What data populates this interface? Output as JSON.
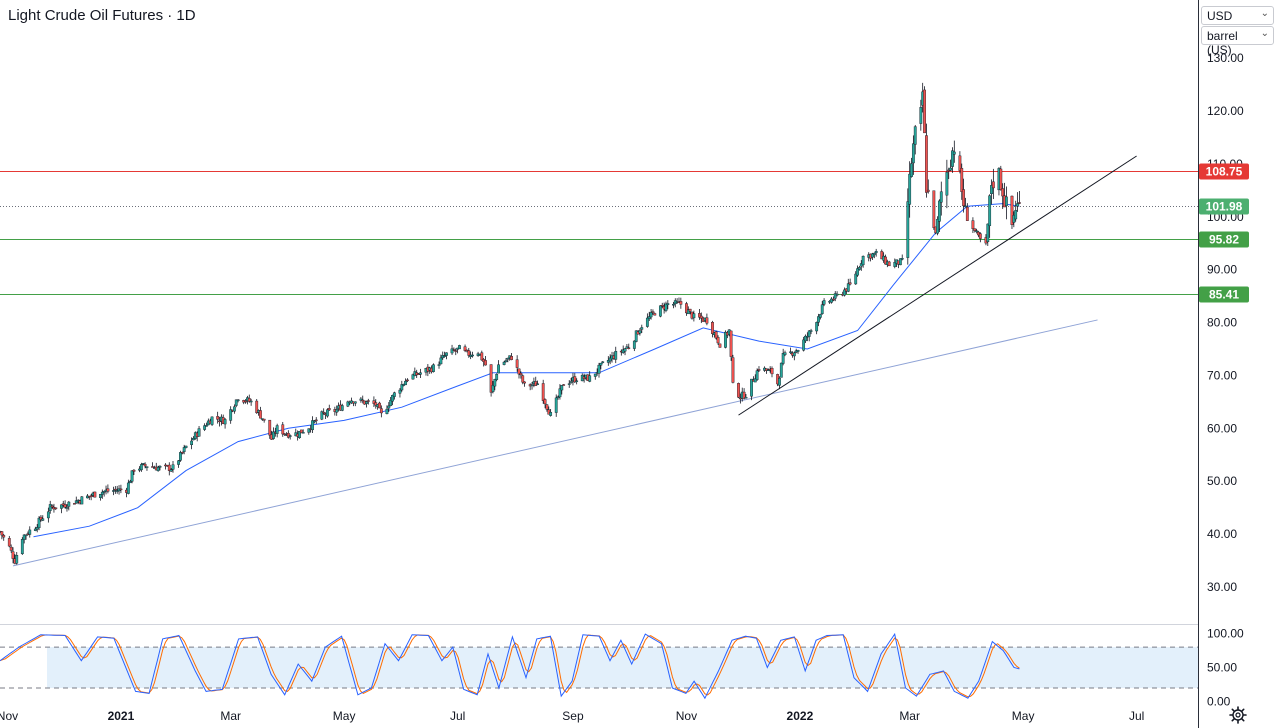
{
  "header": {
    "title": "Light Crude Oil Futures · 1D",
    "currency": "USD",
    "unit": "barrel (US)"
  },
  "icons": {
    "settings": "gear-icon",
    "dropdown": "chevron-down-icon"
  },
  "colors": {
    "background": "#ffffff",
    "candle_up": "#26a69a",
    "candle_down": "#ef5350",
    "moving_average": "#2962ff",
    "resistance_line": "#e53935",
    "support_line": "#43a047",
    "last_price_badge": "#4caf70",
    "long_trendline": "#8fa3d6",
    "short_trendline": "#131722",
    "stoch_k": "#2962ff",
    "stoch_d": "#ff6d00",
    "stoch_band": "#e3f0fb"
  },
  "chart_data": [
    {
      "type": "candlestick",
      "title": "Light Crude Oil Futures · 1D",
      "y_axis": {
        "ticks": [
          "130.00",
          "120.00",
          "110.00",
          "100.00",
          "90.00",
          "80.00",
          "70.00",
          "60.00",
          "50.00",
          "40.00",
          "30.00"
        ],
        "ylim": [
          23,
          141
        ]
      },
      "x_axis": {
        "labels": [
          "Nov",
          "2021",
          "Mar",
          "May",
          "Jul",
          "Sep",
          "Nov",
          "2022",
          "Mar",
          "May",
          "Jul"
        ],
        "label_dates": [
          "2020-11-01",
          "2021-01-01",
          "2021-03-01",
          "2021-05-01",
          "2021-07-01",
          "2021-09-01",
          "2021-11-01",
          "2022-01-01",
          "2022-03-01",
          "2022-05-01",
          "2022-07-01"
        ],
        "range": [
          "2020-10-28",
          "2022-08-03"
        ]
      },
      "close_series": {
        "name": "",
        "points": [
          [
            "2020-10-28",
            40.5
          ],
          [
            "2020-11-02",
            37.5
          ],
          [
            "2020-11-05",
            35.0
          ],
          [
            "2020-11-09",
            39.5
          ],
          [
            "2020-11-16",
            41.5
          ],
          [
            "2020-11-24",
            45.0
          ],
          [
            "2020-12-01",
            45.5
          ],
          [
            "2020-12-10",
            46.5
          ],
          [
            "2020-12-21",
            48.0
          ],
          [
            "2021-01-04",
            48.5
          ],
          [
            "2021-01-08",
            52.3
          ],
          [
            "2021-01-15",
            53.0
          ],
          [
            "2021-01-22",
            52.5
          ],
          [
            "2021-01-29",
            52.5
          ],
          [
            "2021-02-05",
            56.5
          ],
          [
            "2021-02-12",
            59.5
          ],
          [
            "2021-02-19",
            62.0
          ],
          [
            "2021-02-26",
            61.5
          ],
          [
            "2021-03-05",
            66.0
          ],
          [
            "2021-03-08",
            65.5
          ],
          [
            "2021-03-12",
            65.0
          ],
          [
            "2021-03-18",
            62.0
          ],
          [
            "2021-03-23",
            58.0
          ],
          [
            "2021-03-26",
            60.0
          ],
          [
            "2021-03-31",
            59.0
          ],
          [
            "2021-04-06",
            59.0
          ],
          [
            "2021-04-13",
            60.5
          ],
          [
            "2021-04-19",
            62.5
          ],
          [
            "2021-04-27",
            63.5
          ],
          [
            "2021-05-04",
            65.5
          ],
          [
            "2021-05-11",
            65.0
          ],
          [
            "2021-05-18",
            64.5
          ],
          [
            "2021-05-21",
            62.5
          ],
          [
            "2021-05-28",
            66.5
          ],
          [
            "2021-06-04",
            69.5
          ],
          [
            "2021-06-11",
            70.5
          ],
          [
            "2021-06-18",
            71.5
          ],
          [
            "2021-06-25",
            74.0
          ],
          [
            "2021-07-02",
            75.0
          ],
          [
            "2021-07-06",
            74.0
          ],
          [
            "2021-07-12",
            74.5
          ],
          [
            "2021-07-16",
            72.0
          ],
          [
            "2021-07-19",
            66.5
          ],
          [
            "2021-07-23",
            72.0
          ],
          [
            "2021-07-30",
            73.5
          ],
          [
            "2021-08-06",
            68.0
          ],
          [
            "2021-08-13",
            68.5
          ],
          [
            "2021-08-20",
            62.5
          ],
          [
            "2021-08-27",
            68.5
          ],
          [
            "2021-09-03",
            69.5
          ],
          [
            "2021-09-10",
            69.5
          ],
          [
            "2021-09-17",
            72.0
          ],
          [
            "2021-09-24",
            74.0
          ],
          [
            "2021-10-01",
            75.5
          ],
          [
            "2021-10-08",
            79.5
          ],
          [
            "2021-10-15",
            82.0
          ],
          [
            "2021-10-22",
            83.5
          ],
          [
            "2021-10-29",
            83.5
          ],
          [
            "2021-11-05",
            81.0
          ],
          [
            "2021-11-12",
            80.5
          ],
          [
            "2021-11-19",
            76.0
          ],
          [
            "2021-11-24",
            78.5
          ],
          [
            "2021-11-26",
            68.0
          ],
          [
            "2021-11-30",
            66.0
          ],
          [
            "2021-12-03",
            66.5
          ],
          [
            "2021-12-10",
            71.5
          ],
          [
            "2021-12-17",
            70.5
          ],
          [
            "2021-12-20",
            68.5
          ],
          [
            "2021-12-23",
            73.5
          ],
          [
            "2021-12-31",
            75.0
          ],
          [
            "2022-01-07",
            78.5
          ],
          [
            "2022-01-14",
            83.5
          ],
          [
            "2022-01-21",
            85.0
          ],
          [
            "2022-01-28",
            87.0
          ],
          [
            "2022-02-04",
            92.5
          ],
          [
            "2022-02-11",
            93.0
          ],
          [
            "2022-02-18",
            91.0
          ],
          [
            "2022-02-25",
            91.5
          ],
          [
            "2022-03-02",
            110.5
          ],
          [
            "2022-03-04",
            115.5
          ],
          [
            "2022-03-07",
            119.0
          ],
          [
            "2022-03-08",
            123.5
          ],
          [
            "2022-03-10",
            106.0
          ],
          [
            "2022-03-15",
            96.5
          ],
          [
            "2022-03-18",
            104.5
          ],
          [
            "2022-03-24",
            112.5
          ],
          [
            "2022-03-25",
            113.5
          ],
          [
            "2022-03-31",
            100.5
          ],
          [
            "2022-04-07",
            96.0
          ],
          [
            "2022-04-11",
            94.5
          ],
          [
            "2022-04-14",
            106.5
          ],
          [
            "2022-04-18",
            108.0
          ],
          [
            "2022-04-22",
            102.0
          ],
          [
            "2022-04-25",
            98.5
          ],
          [
            "2022-04-27",
            102.0
          ],
          [
            "2022-04-29",
            101.98
          ]
        ]
      },
      "moving_average": {
        "name": "",
        "points": [
          [
            "2020-11-15",
            39.5
          ],
          [
            "2020-12-15",
            41.5
          ],
          [
            "2021-01-10",
            45.0
          ],
          [
            "2021-02-05",
            52.0
          ],
          [
            "2021-03-05",
            57.5
          ],
          [
            "2021-04-01",
            60.0
          ],
          [
            "2021-05-01",
            61.5
          ],
          [
            "2021-06-01",
            64.0
          ],
          [
            "2021-07-01",
            68.0
          ],
          [
            "2021-07-20",
            70.5
          ],
          [
            "2021-08-15",
            70.5
          ],
          [
            "2021-09-15",
            70.5
          ],
          [
            "2021-10-15",
            75.0
          ],
          [
            "2021-11-10",
            79.0
          ],
          [
            "2021-12-10",
            76.5
          ],
          [
            "2022-01-05",
            75.0
          ],
          [
            "2022-02-01",
            78.5
          ],
          [
            "2022-02-20",
            87.0
          ],
          [
            "2022-03-15",
            97.0
          ],
          [
            "2022-04-01",
            102.0
          ],
          [
            "2022-04-20",
            102.5
          ],
          [
            "2022-04-29",
            102.0
          ]
        ]
      },
      "horizontal_lines": [
        {
          "value": 108.75,
          "label": "108.75",
          "role": "resistance"
        },
        {
          "value": 101.98,
          "label": "101.98",
          "role": "last_price",
          "style": "dotted"
        },
        {
          "value": 95.82,
          "label": "95.82",
          "role": "support"
        },
        {
          "value": 85.41,
          "label": "85.41",
          "role": "support"
        }
      ],
      "trendlines": [
        {
          "role": "long",
          "from": [
            "2020-11-04",
            34.0
          ],
          "to": [
            "2022-06-10",
            80.5
          ]
        },
        {
          "role": "short",
          "from": [
            "2021-11-29",
            62.5
          ],
          "to": [
            "2022-07-01",
            111.5
          ]
        }
      ],
      "grid": false,
      "legend": "none"
    },
    {
      "type": "line",
      "title": "",
      "y_axis": {
        "ticks": [
          "100.00",
          "50.00",
          "0.00"
        ],
        "ylim": [
          -5,
          108
        ]
      },
      "bands": [
        80,
        20
      ],
      "series_k": [
        [
          0,
          60
        ],
        [
          7,
          80
        ],
        [
          15,
          98
        ],
        [
          24,
          97
        ],
        [
          30,
          60
        ],
        [
          36,
          95
        ],
        [
          42,
          93
        ],
        [
          50,
          15
        ],
        [
          55,
          12
        ],
        [
          60,
          92
        ],
        [
          66,
          97
        ],
        [
          72,
          45
        ],
        [
          76,
          15
        ],
        [
          82,
          18
        ],
        [
          88,
          92
        ],
        [
          95,
          95
        ],
        [
          100,
          40
        ],
        [
          105,
          10
        ],
        [
          110,
          55
        ],
        [
          115,
          30
        ],
        [
          120,
          80
        ],
        [
          126,
          96
        ],
        [
          132,
          10
        ],
        [
          137,
          20
        ],
        [
          142,
          85
        ],
        [
          147,
          60
        ],
        [
          152,
          98
        ],
        [
          158,
          97
        ],
        [
          163,
          60
        ],
        [
          167,
          80
        ],
        [
          171,
          18
        ],
        [
          176,
          10
        ],
        [
          180,
          70
        ],
        [
          184,
          20
        ],
        [
          189,
          95
        ],
        [
          194,
          35
        ],
        [
          198,
          92
        ],
        [
          203,
          96
        ],
        [
          207,
          8
        ],
        [
          211,
          30
        ],
        [
          215,
          98
        ],
        [
          221,
          96
        ],
        [
          225,
          60
        ],
        [
          229,
          90
        ],
        [
          233,
          55
        ],
        [
          238,
          99
        ],
        [
          244,
          85
        ],
        [
          248,
          20
        ],
        [
          253,
          12
        ],
        [
          256,
          30
        ],
        [
          260,
          5
        ],
        [
          265,
          45
        ],
        [
          270,
          90
        ],
        [
          275,
          96
        ],
        [
          279,
          93
        ],
        [
          283,
          50
        ],
        [
          288,
          90
        ],
        [
          293,
          95
        ],
        [
          297,
          45
        ],
        [
          301,
          90
        ],
        [
          305,
          97
        ],
        [
          311,
          98
        ],
        [
          315,
          35
        ],
        [
          320,
          15
        ],
        [
          325,
          70
        ],
        [
          330,
          99
        ],
        [
          334,
          20
        ],
        [
          338,
          8
        ],
        [
          343,
          40
        ],
        [
          348,
          45
        ],
        [
          352,
          15
        ],
        [
          357,
          5
        ],
        [
          361,
          30
        ],
        [
          366,
          88
        ],
        [
          370,
          75
        ],
        [
          374,
          50
        ],
        [
          376,
          48
        ]
      ],
      "series_d_lag": 2,
      "grid": false,
      "legend": "none"
    }
  ]
}
